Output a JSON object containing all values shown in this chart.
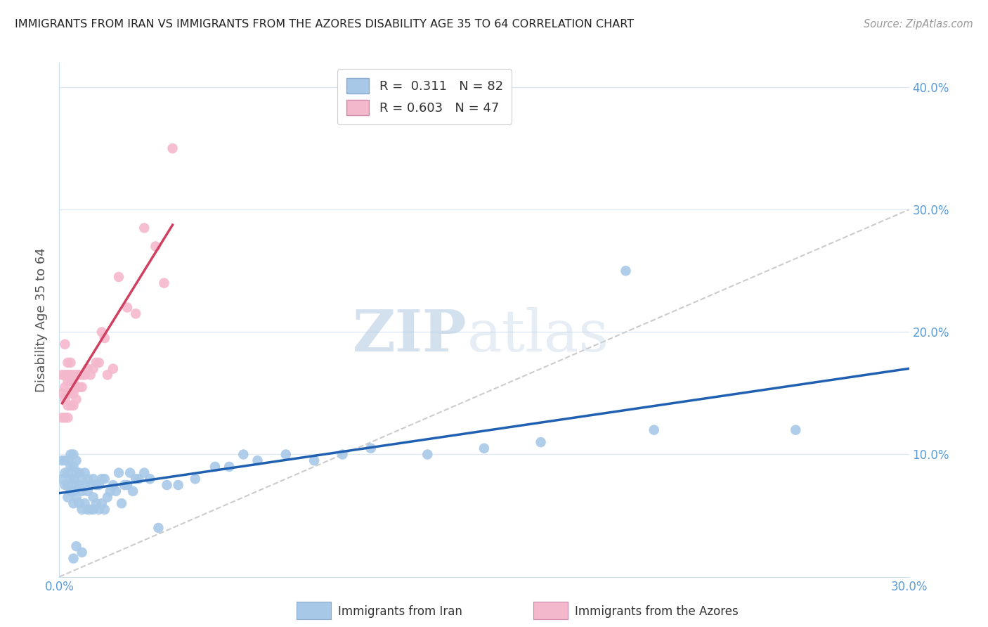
{
  "title": "IMMIGRANTS FROM IRAN VS IMMIGRANTS FROM THE AZORES DISABILITY AGE 35 TO 64 CORRELATION CHART",
  "source": "Source: ZipAtlas.com",
  "xlabel_blue": "Immigrants from Iran",
  "xlabel_pink": "Immigrants from the Azores",
  "ylabel": "Disability Age 35 to 64",
  "xlim": [
    0.0,
    0.3
  ],
  "ylim": [
    0.0,
    0.42
  ],
  "xticks": [
    0.0,
    0.05,
    0.1,
    0.15,
    0.2,
    0.25,
    0.3
  ],
  "xtick_labels": [
    "0.0%",
    "",
    "",
    "",
    "",
    "",
    "30.0%"
  ],
  "yticks": [
    0.1,
    0.2,
    0.3,
    0.4
  ],
  "ytick_labels": [
    "10.0%",
    "20.0%",
    "30.0%",
    "40.0%"
  ],
  "R_blue": 0.311,
  "N_blue": 82,
  "R_pink": 0.603,
  "N_pink": 47,
  "blue_color": "#a8c8e8",
  "pink_color": "#f4b8cc",
  "blue_line_color": "#2060b0",
  "pink_line_color": "#d04060",
  "diagonal_color": "#cccccc",
  "watermark_zip": "ZIP",
  "watermark_atlas": "atlas",
  "background_color": "#ffffff",
  "blue_scatter_x": [
    0.001,
    0.001,
    0.002,
    0.002,
    0.002,
    0.003,
    0.003,
    0.003,
    0.003,
    0.004,
    0.004,
    0.004,
    0.004,
    0.005,
    0.005,
    0.005,
    0.005,
    0.005,
    0.006,
    0.006,
    0.006,
    0.006,
    0.007,
    0.007,
    0.007,
    0.008,
    0.008,
    0.008,
    0.009,
    0.009,
    0.009,
    0.01,
    0.01,
    0.01,
    0.011,
    0.011,
    0.012,
    0.012,
    0.012,
    0.013,
    0.013,
    0.014,
    0.014,
    0.015,
    0.015,
    0.016,
    0.016,
    0.017,
    0.018,
    0.019,
    0.02,
    0.021,
    0.022,
    0.023,
    0.024,
    0.025,
    0.026,
    0.027,
    0.028,
    0.03,
    0.032,
    0.035,
    0.038,
    0.042,
    0.048,
    0.055,
    0.06,
    0.065,
    0.07,
    0.08,
    0.09,
    0.1,
    0.11,
    0.13,
    0.15,
    0.17,
    0.2,
    0.21,
    0.26,
    0.005,
    0.006,
    0.008
  ],
  "blue_scatter_y": [
    0.08,
    0.095,
    0.075,
    0.085,
    0.095,
    0.065,
    0.075,
    0.085,
    0.095,
    0.07,
    0.08,
    0.09,
    0.1,
    0.06,
    0.07,
    0.08,
    0.09,
    0.1,
    0.065,
    0.075,
    0.085,
    0.095,
    0.06,
    0.075,
    0.085,
    0.055,
    0.07,
    0.08,
    0.06,
    0.075,
    0.085,
    0.055,
    0.07,
    0.08,
    0.055,
    0.075,
    0.055,
    0.065,
    0.08,
    0.06,
    0.075,
    0.055,
    0.075,
    0.06,
    0.08,
    0.055,
    0.08,
    0.065,
    0.07,
    0.075,
    0.07,
    0.085,
    0.06,
    0.075,
    0.075,
    0.085,
    0.07,
    0.08,
    0.08,
    0.085,
    0.08,
    0.04,
    0.075,
    0.075,
    0.08,
    0.09,
    0.09,
    0.1,
    0.095,
    0.1,
    0.095,
    0.1,
    0.105,
    0.1,
    0.105,
    0.11,
    0.25,
    0.12,
    0.12,
    0.015,
    0.025,
    0.02
  ],
  "pink_scatter_x": [
    0.001,
    0.001,
    0.001,
    0.002,
    0.002,
    0.002,
    0.002,
    0.002,
    0.003,
    0.003,
    0.003,
    0.003,
    0.003,
    0.003,
    0.004,
    0.004,
    0.004,
    0.004,
    0.004,
    0.005,
    0.005,
    0.005,
    0.005,
    0.006,
    0.006,
    0.006,
    0.007,
    0.007,
    0.008,
    0.008,
    0.009,
    0.01,
    0.011,
    0.012,
    0.013,
    0.014,
    0.015,
    0.016,
    0.017,
    0.019,
    0.021,
    0.024,
    0.027,
    0.03,
    0.034,
    0.037,
    0.04
  ],
  "pink_scatter_y": [
    0.13,
    0.15,
    0.165,
    0.13,
    0.145,
    0.155,
    0.165,
    0.19,
    0.13,
    0.14,
    0.15,
    0.16,
    0.165,
    0.175,
    0.14,
    0.15,
    0.16,
    0.165,
    0.175,
    0.14,
    0.15,
    0.16,
    0.165,
    0.145,
    0.155,
    0.165,
    0.155,
    0.165,
    0.155,
    0.165,
    0.165,
    0.17,
    0.165,
    0.17,
    0.175,
    0.175,
    0.2,
    0.195,
    0.165,
    0.17,
    0.245,
    0.22,
    0.215,
    0.285,
    0.27,
    0.24,
    0.35
  ],
  "grid_color": "#ddeaf5",
  "tick_color": "#5b9bd5",
  "axis_color": "#ccddee"
}
